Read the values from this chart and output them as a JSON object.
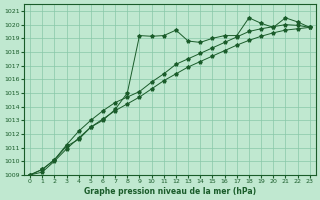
{
  "title": "Graphe pression niveau de la mer (hPa)",
  "bg_color": "#c0e8d0",
  "grid_color": "#88c8a8",
  "line_color": "#1a5c2a",
  "xlim": [
    -0.5,
    23.5
  ],
  "ylim": [
    1009,
    1021.5
  ],
  "xtick_labels": [
    "0",
    "1",
    "2",
    "3",
    "4",
    "5",
    "6",
    "7",
    "8",
    "9",
    "10",
    "11",
    "12",
    "13",
    "14",
    "15",
    "16",
    "17",
    "18",
    "19",
    "20",
    "21",
    "22",
    "23"
  ],
  "ytick_labels": [
    "1009",
    "1010",
    "1011",
    "1012",
    "1013",
    "1014",
    "1015",
    "1016",
    "1017",
    "1018",
    "1019",
    "1020",
    "1021"
  ],
  "series1": [
    1009.0,
    1009.4,
    1010.1,
    1011.1,
    1011.6,
    1012.5,
    1013.0,
    1013.8,
    1015.0,
    1019.2,
    1019.15,
    1019.2,
    1019.6,
    1018.8,
    1018.7,
    1019.0,
    1019.2,
    1019.2,
    1020.5,
    1020.1,
    1019.8,
    1020.5,
    1020.2,
    1019.8
  ],
  "series2": [
    1009.0,
    1009.4,
    1010.1,
    1011.2,
    1012.2,
    1013.0,
    1013.7,
    1014.3,
    1014.7,
    1015.1,
    1015.8,
    1016.4,
    1017.1,
    1017.5,
    1017.9,
    1018.3,
    1018.7,
    1019.1,
    1019.5,
    1019.7,
    1019.85,
    1020.0,
    1019.95,
    1019.8
  ],
  "series3": [
    1009.0,
    1009.2,
    1010.0,
    1010.9,
    1011.7,
    1012.5,
    1013.1,
    1013.7,
    1014.2,
    1014.7,
    1015.3,
    1015.9,
    1016.4,
    1016.9,
    1017.3,
    1017.7,
    1018.1,
    1018.5,
    1018.85,
    1019.15,
    1019.4,
    1019.6,
    1019.7,
    1019.8
  ]
}
